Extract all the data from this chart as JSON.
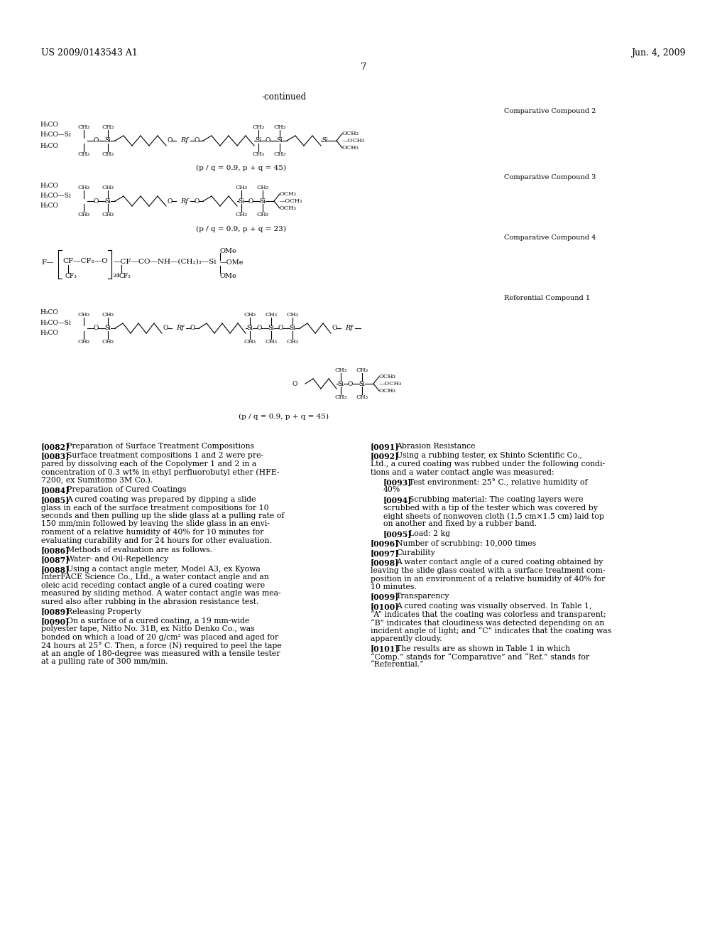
{
  "bg_color": "#ffffff",
  "header_left": "US 2009/0143543 A1",
  "header_right": "Jun. 4, 2009",
  "page_number": "7",
  "continued_label": "-continued",
  "body_text_col1": [
    [
      "[0082]",
      "Preparation of Surface Treatment Compositions"
    ],
    [
      "[0083]",
      "Surface treatment compositions 1 and 2 were pre-\npared by dissolving each of the Copolymer 1 and 2 in a\nconcentration of 0.3 wt% in ethyl perfluorobutyl ether (HFE-\n7200, ex Sumitomo 3M Co.)."
    ],
    [
      "[0084]",
      "Preparation of Cured Coatings"
    ],
    [
      "[0085]",
      "A cured coating was prepared by dipping a slide\nglass in each of the surface treatment compositions for 10\nseconds and then pulling up the slide glass at a pulling rate of\n150 mm/min followed by leaving the slide glass in an envi-\nronment of a relative humidity of 40% for 10 minutes for\nevaluating curability and for 24 hours for other evaluation."
    ],
    [
      "[0086]",
      "Methods of evaluation are as follows."
    ],
    [
      "[0087]",
      "Water- and Oil-Repellency"
    ],
    [
      "[0088]",
      "Using a contact angle meter, Model A3, ex Kyowa\nInterFACE Science Co., Ltd., a water contact angle and an\noleic acid receding contact angle of a cured coating were\nmeasured by sliding method. A water contact angle was mea-\nsured also after rubbing in the abrasion resistance test."
    ],
    [
      "[0089]",
      "Releasing Property"
    ],
    [
      "[0090]",
      "On a surface of a cured coating, a 19 mm-wide\npolyester tape, Nitto No. 31B, ex Nitto Denko Co., was\nbonded on which a load of 20 g/cm² was placed and aged for\n24 hours at 25° C. Then, a force (N) required to peel the tape\nat an angle of 180-degree was measured with a tensile tester\nat a pulling rate of 300 mm/min."
    ]
  ],
  "body_text_col2": [
    [
      "[0091]",
      "Abrasion Resistance"
    ],
    [
      "[0092]",
      "Using a rubbing tester, ex Shinto Scientific Co.,\nLtd., a cured coating was rubbed under the following condi-\ntions and a water contact angle was measured:"
    ],
    [
      "[0093i]",
      "Test environment: 25° C., relative humidity of\n40%"
    ],
    [
      "[0094i]",
      "Scrubbing material: The coating layers were\nscrubbed with a tip of the tester which was covered by\neight sheets of nonwoven cloth (1.5 cm×1.5 cm) laid top\non another and fixed by a rubber band."
    ],
    [
      "[0095i]",
      "Load: 2 kg"
    ],
    [
      "[0096]",
      "Number of scrubbing: 10,000 times"
    ],
    [
      "[0097]",
      "Curability"
    ],
    [
      "[0098]",
      "A water contact angle of a cured coating obtained by\nleaving the slide glass coated with a surface treatment com-\nposition in an environment of a relative humidity of 40% for\n10 minutes."
    ],
    [
      "[0099]",
      "Transparency"
    ],
    [
      "[0100]",
      "A cured coating was visually observed. In Table 1,\n“A” indicates that the coating was colorless and transparent;\n“B” indicates that cloudiness was detected depending on an\nincident angle of light; and “C” indicates that the coating was\napparently cloudy."
    ],
    [
      "[0101]",
      "The results are as shown in Table 1 in which\n“Comp.” stands for “Comparative” and “Ref.” stands for\n“Referential.”"
    ]
  ]
}
